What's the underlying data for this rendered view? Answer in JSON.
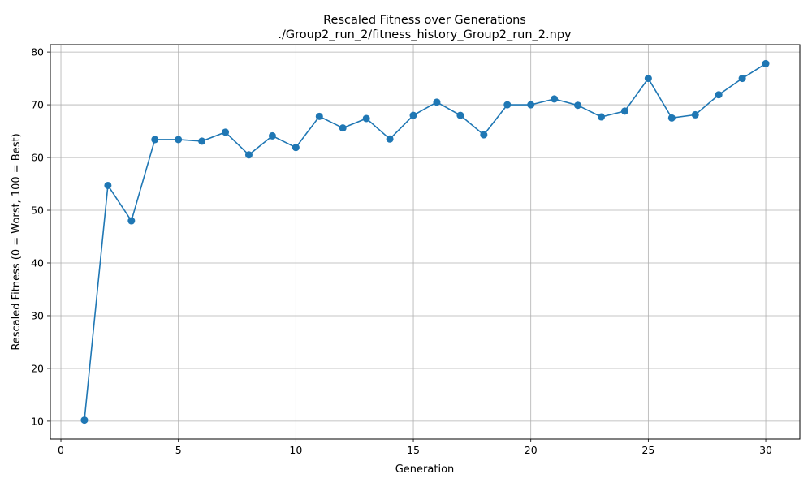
{
  "chart_data": {
    "type": "line",
    "title": "Rescaled Fitness over Generations",
    "subtitle": "./Group2_run_2/fitness_history_Group2_run_2.npy",
    "xlabel": "Generation",
    "ylabel": "Rescaled Fitness (0 = Worst, 100 = Best)",
    "xlim": [
      -0.45,
      31.45
    ],
    "ylim": [
      6.6,
      81.4
    ],
    "xticks": [
      0,
      5,
      10,
      15,
      20,
      25,
      30
    ],
    "yticks": [
      10,
      20,
      30,
      40,
      50,
      60,
      70,
      80
    ],
    "grid": true,
    "line_color": "#1f77b4",
    "series": [
      {
        "x": [
          1,
          2,
          3,
          4,
          5,
          6,
          7,
          8,
          9,
          10,
          11,
          12,
          13,
          14,
          15,
          16,
          17,
          18,
          19,
          20,
          21,
          22,
          23,
          24,
          25,
          26,
          27,
          28,
          29,
          30
        ],
        "values": [
          10.2,
          54.7,
          48.0,
          63.4,
          63.4,
          63.1,
          64.8,
          60.5,
          64.1,
          61.9,
          67.8,
          65.6,
          67.4,
          63.5,
          68.0,
          70.5,
          68.0,
          64.3,
          70.0,
          70.0,
          71.1,
          69.9,
          67.7,
          68.8,
          75.0,
          67.5,
          68.1,
          71.9,
          75.0,
          77.8
        ]
      }
    ]
  }
}
